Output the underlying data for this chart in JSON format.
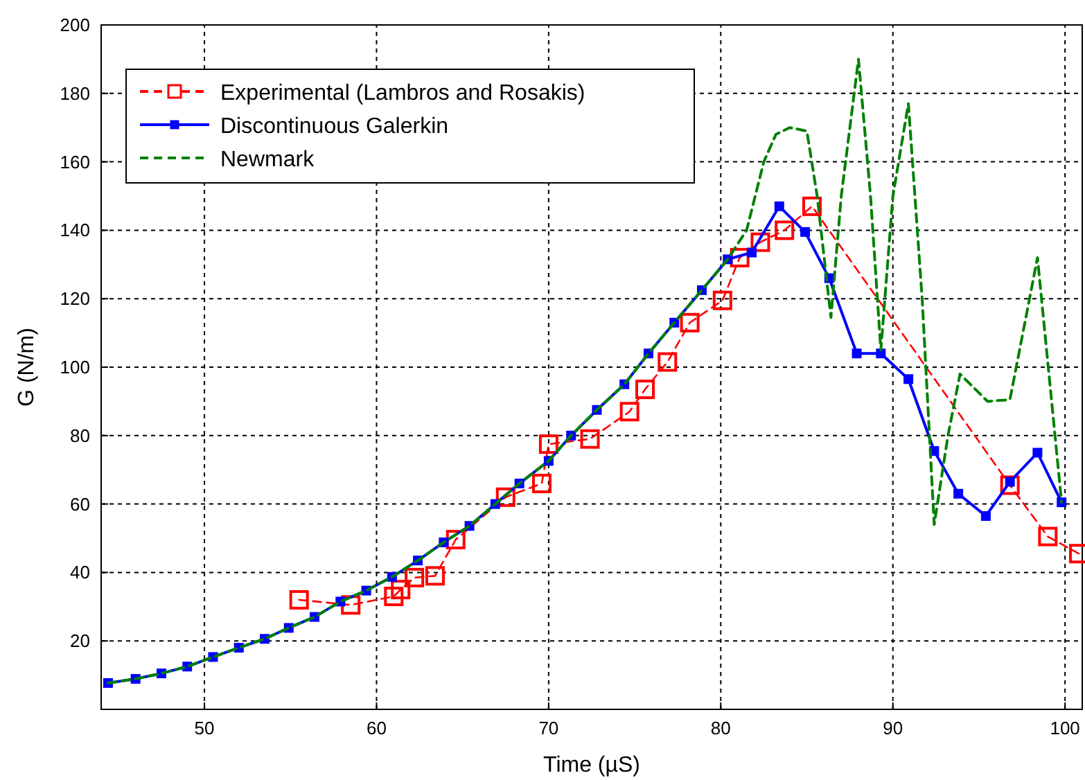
{
  "chart_data": {
    "type": "line",
    "xlabel": "Time (µS)",
    "ylabel": "G (N/m)",
    "xlim": [
      44,
      101
    ],
    "xticks": [
      50,
      60,
      70,
      80,
      90,
      100
    ],
    "ylim": [
      0,
      200
    ],
    "yticks": [
      20,
      40,
      60,
      80,
      100,
      120,
      140,
      160,
      180,
      200
    ],
    "grid": true,
    "legend": "top left",
    "series": [
      {
        "name": "Experimental (Lambros and Rosakis)",
        "color": "#ff0000",
        "marker": "square",
        "line_style": "dashed",
        "x": [
          55.5,
          58.5,
          61,
          61.4,
          62.2,
          63.4,
          64.6,
          67.5,
          69.6,
          70,
          72.4,
          74.7,
          75.6,
          76.9,
          78.2,
          80.1,
          81.1,
          82.3,
          83.7,
          85.3,
          96.8,
          99,
          100.8
        ],
        "values": [
          32,
          30.5,
          33,
          35,
          38.5,
          39,
          49.6,
          62,
          66,
          77.5,
          79,
          87,
          93.5,
          101.5,
          113,
          119.5,
          132,
          136.5,
          140,
          147,
          65.5,
          50.5,
          45.5
        ]
      },
      {
        "name": "Discontinuous Galerkin",
        "color": "#0000ff",
        "marker": "square",
        "line_style": "solid",
        "x": [
          44.4,
          46,
          47.5,
          49,
          50.5,
          52,
          53.5,
          54.9,
          56.4,
          57.9,
          59.4,
          60.9,
          62.4,
          63.9,
          65.4,
          66.9,
          68.3,
          70,
          71.3,
          72.8,
          74.4,
          75.8,
          77.3,
          78.9,
          80.4,
          81.8,
          83.4,
          84.9,
          86.3,
          87.9,
          89.3,
          90.9,
          92.4,
          93.8,
          95.4,
          96.8,
          98.4,
          99.8
        ],
        "values": [
          7.7,
          8.9,
          10.5,
          12.5,
          15.3,
          18,
          20.6,
          23.8,
          27,
          31.5,
          34.7,
          38.7,
          43.5,
          48.8,
          53.6,
          60,
          66,
          72.6,
          80,
          87.5,
          95,
          104,
          113,
          122.5,
          131.5,
          133.5,
          147,
          139.5,
          126,
          104,
          104,
          96.5,
          75.5,
          63,
          56.5,
          66.5,
          75,
          60.5
        ]
      },
      {
        "name": "Newmark",
        "color": "#008000",
        "marker": "none",
        "line_style": "dashed",
        "x": [
          44.4,
          46,
          47.5,
          49,
          50.5,
          52,
          53.5,
          54.9,
          56.4,
          57.9,
          59.4,
          60.9,
          62.4,
          63.9,
          65.4,
          66.9,
          68.3,
          70,
          71.3,
          72.8,
          74.4,
          75.8,
          77.3,
          78.9,
          80.4,
          81.5,
          82.5,
          83.2,
          84,
          85,
          85.6,
          86.4,
          87,
          88,
          88.7,
          89.3,
          90,
          90.9,
          91.7,
          92.4,
          93.2,
          93.9,
          95.5,
          96.8,
          98.4,
          99.8
        ],
        "values": [
          7.7,
          8.9,
          10.5,
          12.5,
          15.3,
          18,
          20.6,
          23.8,
          27,
          31.5,
          34.7,
          38.7,
          43.5,
          48.8,
          53.6,
          60,
          66,
          72.6,
          80,
          87.5,
          95,
          104,
          113,
          122.5,
          131.5,
          140,
          160,
          168,
          170,
          169,
          150,
          114.5,
          150,
          190,
          150,
          105,
          150,
          177,
          120,
          54,
          80,
          98,
          90,
          90.5,
          132,
          60.5
        ]
      }
    ]
  }
}
